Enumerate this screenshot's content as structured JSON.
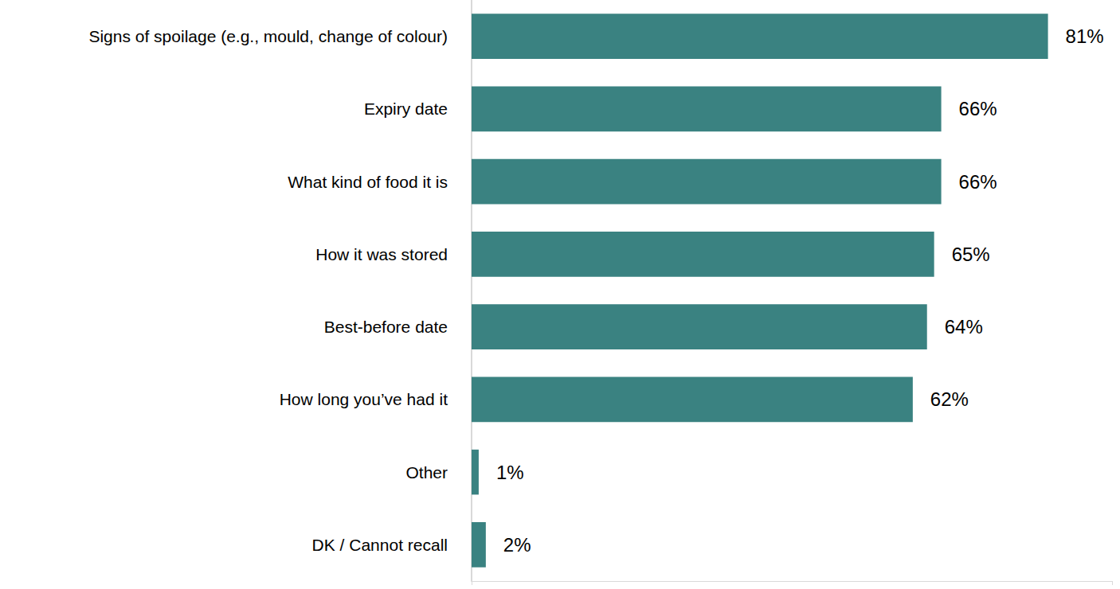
{
  "chart_data": {
    "type": "bar",
    "orientation": "horizontal",
    "categories": [
      "Signs of spoilage (e.g., mould, change of colour)",
      "Expiry date",
      "What kind of food it is",
      "How it was stored",
      "Best-before date",
      "How long you’ve had it",
      "Other",
      "DK / Cannot recall"
    ],
    "values": [
      81,
      66,
      66,
      65,
      64,
      62,
      1,
      2
    ],
    "value_labels": [
      "81%",
      "66%",
      "66%",
      "65%",
      "64%",
      "62%",
      "1%",
      "2%"
    ],
    "color": "#3a8281",
    "xlim": [
      0,
      90
    ],
    "xticks": [
      0,
      90
    ],
    "grid": false,
    "data_labels": true,
    "tick_labels": "y"
  }
}
